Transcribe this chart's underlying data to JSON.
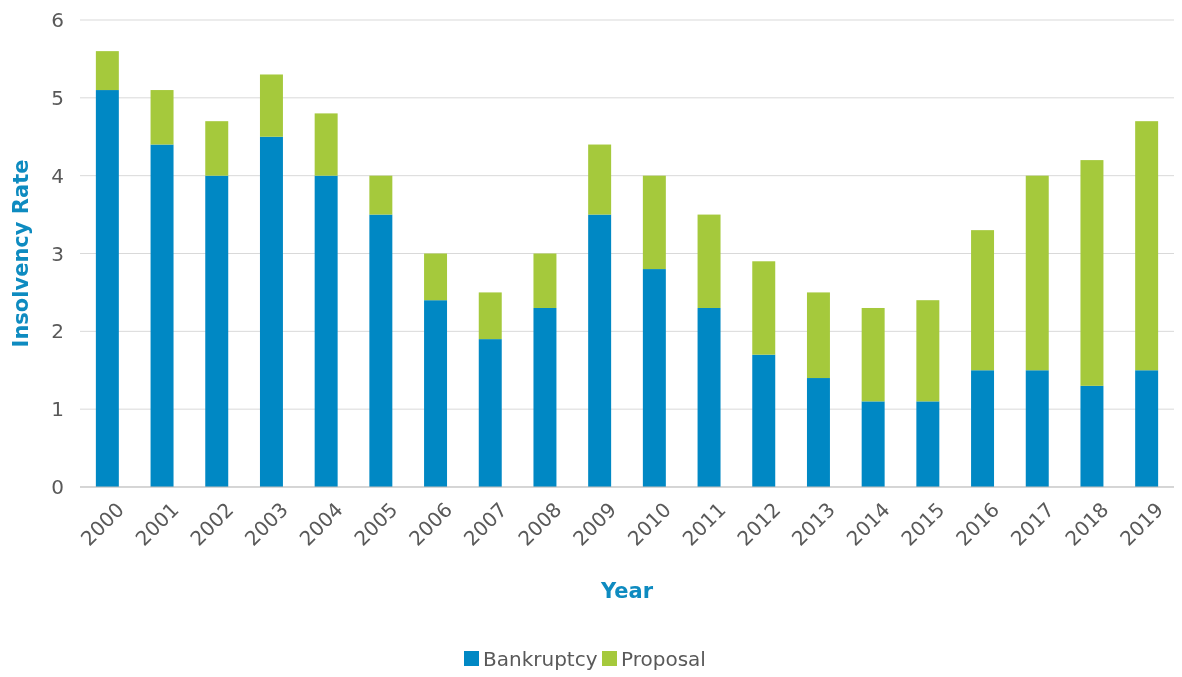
{
  "chart_data": {
    "type": "bar",
    "stacked": true,
    "xlabel": "Year",
    "ylabel": "Insolvency Rate",
    "categories": [
      "2000",
      "2001",
      "2002",
      "2003",
      "2004",
      "2005",
      "2006",
      "2007",
      "2008",
      "2009",
      "2010",
      "2011",
      "2012",
      "2013",
      "2014",
      "2015",
      "2016",
      "2017",
      "2018",
      "2019"
    ],
    "series": [
      {
        "name": "Bankruptcy",
        "color": "#0088c4",
        "values": [
          5.1,
          4.4,
          4.0,
          4.5,
          4.0,
          3.5,
          2.4,
          1.9,
          2.3,
          3.5,
          2.8,
          2.3,
          1.7,
          1.4,
          1.1,
          1.1,
          1.5,
          1.5,
          1.3,
          1.5
        ]
      },
      {
        "name": "Proposal",
        "color": "#a5c93c",
        "values": [
          0.5,
          0.7,
          0.7,
          0.8,
          0.8,
          0.5,
          0.6,
          0.6,
          0.7,
          0.9,
          1.2,
          1.2,
          1.2,
          1.1,
          1.2,
          1.3,
          1.8,
          2.5,
          2.9,
          3.2
        ]
      }
    ],
    "ylim": [
      0,
      6
    ],
    "yticks": [
      0,
      1,
      2,
      3,
      4,
      5,
      6
    ],
    "grid": "y",
    "legend": "bottom"
  }
}
